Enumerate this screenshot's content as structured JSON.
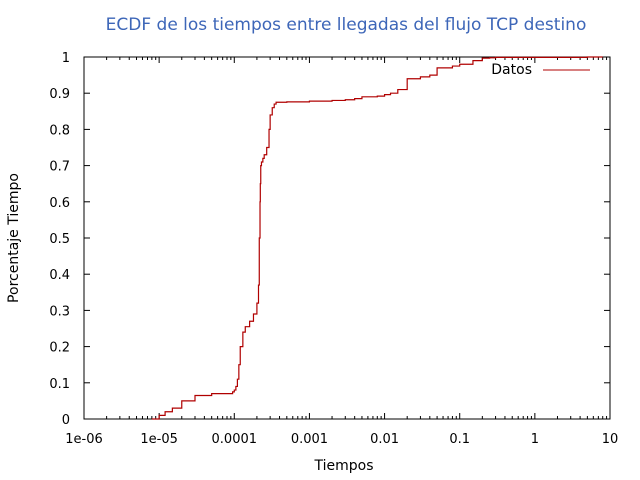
{
  "chart_data": {
    "type": "line",
    "title": "ECDF de los tiempos entre llegadas del flujo TCP destino",
    "xlabel": "Tiempos",
    "ylabel": "Porcentaje Tiempo",
    "xscale": "log",
    "xlim": [
      1e-06,
      10
    ],
    "ylim": [
      0,
      1
    ],
    "x_tick_labels": [
      "1e-06",
      "1e-05",
      "0.0001",
      "0.001",
      "0.01",
      "0.1",
      "1",
      "10"
    ],
    "y_tick_labels": [
      "0",
      "0.1",
      "0.2",
      "0.3",
      "0.4",
      "0.5",
      "0.6",
      "0.7",
      "0.8",
      "0.9",
      "1"
    ],
    "legend_position": "top-right",
    "grid": false,
    "colors": {
      "title": "#3d66b8",
      "series": "#b00000",
      "axis": "#000000"
    },
    "series": [
      {
        "name": "Datos",
        "x": [
          8e-06,
          1e-05,
          1.2e-05,
          1.5e-05,
          2e-05,
          3e-05,
          5e-05,
          8e-05,
          9e-05,
          9.5e-05,
          0.0001,
          0.000105,
          0.00011,
          0.000115,
          0.00012,
          0.00013,
          0.00014,
          0.00016,
          0.00018,
          0.0002,
          0.00021,
          0.000215,
          0.00022,
          0.000222,
          0.000225,
          0.00023,
          0.00024,
          0.00025,
          0.00027,
          0.00029,
          0.0003,
          0.00032,
          0.00034,
          0.00036,
          0.0004,
          0.0005,
          0.001,
          0.002,
          0.003,
          0.004,
          0.005,
          0.006,
          0.008,
          0.01,
          0.012,
          0.015,
          0.02,
          0.03,
          0.04,
          0.05,
          0.08,
          0.1,
          0.15,
          0.2,
          0.25,
          0.3,
          0.5,
          1,
          2,
          5,
          8
        ],
        "y": [
          0.0,
          0.01,
          0.02,
          0.03,
          0.05,
          0.065,
          0.07,
          0.07,
          0.07,
          0.075,
          0.08,
          0.09,
          0.11,
          0.15,
          0.2,
          0.24,
          0.255,
          0.27,
          0.29,
          0.32,
          0.37,
          0.5,
          0.6,
          0.65,
          0.7,
          0.71,
          0.72,
          0.73,
          0.75,
          0.8,
          0.84,
          0.86,
          0.87,
          0.875,
          0.875,
          0.876,
          0.878,
          0.88,
          0.882,
          0.885,
          0.89,
          0.89,
          0.892,
          0.896,
          0.9,
          0.91,
          0.94,
          0.945,
          0.95,
          0.97,
          0.975,
          0.98,
          0.99,
          0.997,
          0.998,
          0.999,
          0.999,
          0.999,
          0.999,
          1.0,
          1.0
        ]
      }
    ]
  }
}
